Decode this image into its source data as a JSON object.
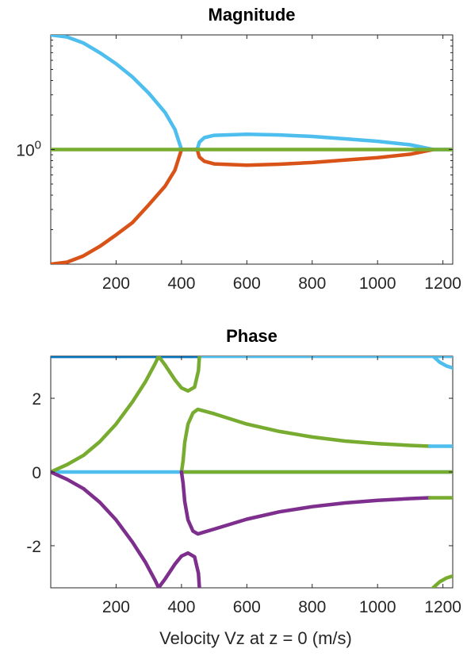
{
  "chart_data": [
    {
      "type": "line",
      "title": "Magnitude",
      "xlabel": "",
      "ylabel": "",
      "y_scale": "log",
      "xlim": [
        0,
        1230
      ],
      "ylim": [
        0.1,
        10
      ],
      "x_ticks": [
        200,
        400,
        600,
        800,
        1000,
        1200
      ],
      "x_tick_labels": [
        "200",
        "400",
        "600",
        "800",
        "1000",
        "1200"
      ],
      "y_ticks": [
        1
      ],
      "y_tick_labels": [
        {
          "base": "10",
          "exp": "0"
        }
      ],
      "grid": false,
      "series": [
        {
          "color": "#4DBEEE",
          "points": [
            [
              0,
              10
            ],
            [
              50,
              9.6
            ],
            [
              100,
              8.5
            ],
            [
              150,
              7.0
            ],
            [
              200,
              5.6
            ],
            [
              250,
              4.3
            ],
            [
              300,
              3.1
            ],
            [
              350,
              2.1
            ],
            [
              380,
              1.5
            ],
            [
              400,
              1.0
            ],
            [
              430,
              1.0
            ],
            [
              448,
              1.0
            ],
            [
              455,
              1.16
            ],
            [
              470,
              1.27
            ],
            [
              500,
              1.33
            ],
            [
              600,
              1.36
            ],
            [
              700,
              1.34
            ],
            [
              800,
              1.3
            ],
            [
              900,
              1.24
            ],
            [
              1000,
              1.18
            ],
            [
              1100,
              1.1
            ],
            [
              1170,
              1.0
            ],
            [
              1230,
              1.0
            ]
          ]
        },
        {
          "color": "#D95319",
          "points": [
            [
              0,
              0.1
            ],
            [
              50,
              0.104
            ],
            [
              100,
              0.118
            ],
            [
              150,
              0.143
            ],
            [
              200,
              0.18
            ],
            [
              250,
              0.23
            ],
            [
              300,
              0.33
            ],
            [
              350,
              0.48
            ],
            [
              380,
              0.66
            ],
            [
              400,
              1.0
            ],
            [
              448,
              1.0
            ],
            [
              455,
              0.86
            ],
            [
              470,
              0.79
            ],
            [
              500,
              0.75
            ],
            [
              600,
              0.73
            ],
            [
              700,
              0.745
            ],
            [
              800,
              0.77
            ],
            [
              900,
              0.81
            ],
            [
              1000,
              0.85
            ],
            [
              1100,
              0.91
            ],
            [
              1170,
              1.0
            ]
          ]
        },
        {
          "color": "#77AC30",
          "points": [
            [
              0,
              1
            ],
            [
              1230,
              1
            ]
          ]
        }
      ]
    },
    {
      "type": "line",
      "title": "Phase",
      "xlabel": "Velocity Vz at z = 0 (m/s)",
      "ylabel": "",
      "xlim": [
        0,
        1230
      ],
      "ylim": [
        -3.1416,
        3.1416
      ],
      "x_ticks": [
        200,
        400,
        600,
        800,
        1000,
        1200
      ],
      "x_tick_labels": [
        "200",
        "400",
        "600",
        "800",
        "1000",
        "1200"
      ],
      "y_ticks": [
        2,
        0,
        -2
      ],
      "y_tick_labels": [
        "2",
        "0",
        "-2"
      ],
      "grid": false,
      "series": [
        {
          "color": "#4DBEEE",
          "points": [
            [
              0,
              3.14
            ],
            [
              1230,
              3.14
            ]
          ]
        },
        {
          "color": "#0072BD",
          "points": [
            [
              0,
              3.14
            ],
            [
              450,
              3.14
            ]
          ]
        },
        {
          "color": "#4DBEEE",
          "points": [
            [
              0,
              0
            ],
            [
              1230,
              0
            ]
          ]
        },
        {
          "color": "#77AC30",
          "points": [
            [
              0,
              0
            ],
            [
              50,
              0.2
            ],
            [
              100,
              0.45
            ],
            [
              150,
              0.82
            ],
            [
              200,
              1.3
            ],
            [
              250,
              1.9
            ],
            [
              290,
              2.45
            ],
            [
              320,
              2.95
            ],
            [
              330,
              3.14
            ],
            [
              350,
              2.9
            ],
            [
              380,
              2.5
            ],
            [
              400,
              2.28
            ],
            [
              420,
              2.2
            ],
            [
              440,
              2.3
            ],
            [
              452,
              2.75
            ],
            [
              455,
              3.14
            ]
          ]
        },
        {
          "color": "#7E2F8E",
          "points": [
            [
              0,
              0
            ],
            [
              50,
              -0.2
            ],
            [
              100,
              -0.45
            ],
            [
              150,
              -0.82
            ],
            [
              200,
              -1.3
            ],
            [
              250,
              -1.9
            ],
            [
              290,
              -2.45
            ],
            [
              320,
              -2.95
            ],
            [
              330,
              -3.14
            ],
            [
              350,
              -2.9
            ],
            [
              380,
              -2.5
            ],
            [
              400,
              -2.28
            ],
            [
              420,
              -2.2
            ],
            [
              440,
              -2.3
            ],
            [
              452,
              -2.75
            ],
            [
              455,
              -3.14
            ]
          ]
        },
        {
          "color": "#77AC30",
          "points": [
            [
              400,
              0
            ],
            [
              1230,
              0
            ]
          ]
        },
        {
          "color": "#77AC30",
          "points": [
            [
              400,
              0.0
            ],
            [
              405,
              0.3
            ],
            [
              410,
              0.8
            ],
            [
              420,
              1.3
            ],
            [
              435,
              1.6
            ],
            [
              450,
              1.7
            ],
            [
              500,
              1.58
            ],
            [
              600,
              1.3
            ],
            [
              700,
              1.1
            ],
            [
              800,
              0.95
            ],
            [
              900,
              0.84
            ],
            [
              1000,
              0.77
            ],
            [
              1100,
              0.72
            ],
            [
              1160,
              0.7
            ]
          ]
        },
        {
          "color": "#4DBEEE",
          "points": [
            [
              1160,
              0.7
            ],
            [
              1230,
              0.7
            ]
          ]
        },
        {
          "color": "#7E2F8E",
          "points": [
            [
              400,
              0.0
            ],
            [
              405,
              -0.3
            ],
            [
              410,
              -0.8
            ],
            [
              420,
              -1.3
            ],
            [
              435,
              -1.6
            ],
            [
              450,
              -1.68
            ],
            [
              500,
              -1.55
            ],
            [
              600,
              -1.28
            ],
            [
              700,
              -1.08
            ],
            [
              800,
              -0.94
            ],
            [
              900,
              -0.84
            ],
            [
              1000,
              -0.77
            ],
            [
              1100,
              -0.72
            ],
            [
              1160,
              -0.7
            ]
          ]
        },
        {
          "color": "#77AC30",
          "points": [
            [
              1160,
              -0.7
            ],
            [
              1230,
              -0.7
            ]
          ]
        },
        {
          "color": "#4DBEEE",
          "points": [
            [
              1170,
              3.14
            ],
            [
              1190,
              2.98
            ],
            [
              1210,
              2.88
            ],
            [
              1230,
              2.82
            ]
          ]
        },
        {
          "color": "#77AC30",
          "points": [
            [
              1170,
              -3.14
            ],
            [
              1190,
              -2.98
            ],
            [
              1210,
              -2.88
            ],
            [
              1230,
              -2.82
            ]
          ]
        }
      ]
    }
  ]
}
